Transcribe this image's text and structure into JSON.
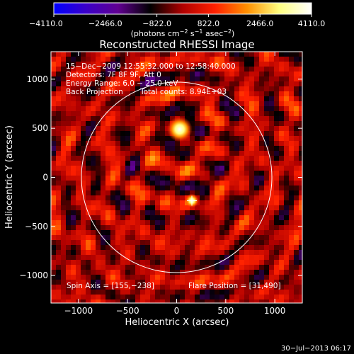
{
  "colorbar": {
    "ticks": [
      "−4110.0",
      "−2466.0",
      "−822.0",
      "822.0",
      "2466.0",
      "4110.0"
    ],
    "unit_prefix": "(photons cm",
    "unit_exp1": "−2",
    "unit_mid": " s",
    "unit_exp2": "−1",
    "unit_mid2": " asec",
    "unit_exp3": "−2",
    "unit_suffix": ")"
  },
  "annotations": {
    "time_range": "15−Dec−2009 12:55:32.000 to 12:58:40.000",
    "detectors": "Detectors: 7F 8F 9F, Att 0",
    "energy": "Energy Range: 6.0 − 25.0 keV",
    "method": "Back Projection",
    "total_counts": "Total counts: 8.94E+03",
    "spin_axis": "Spin Axis = [155,−238]",
    "flare_position": "Flare Position = [31,490]"
  },
  "footer_date": "30−Jul−2013 06:17",
  "chart_data": {
    "type": "heatmap",
    "title": "Reconstructed RHESSI Image",
    "xlabel": "Heliocentric X (arcsec)",
    "ylabel": "Heliocentric Y (arcsec)",
    "xlim": [
      -1280,
      1280
    ],
    "ylim": [
      -1280,
      1280
    ],
    "x_ticks": [
      {
        "value": -1000,
        "label": "−1000"
      },
      {
        "value": -500,
        "label": "−500"
      },
      {
        "value": 0,
        "label": "0"
      },
      {
        "value": 500,
        "label": "500"
      },
      {
        "value": 1000,
        "label": "1000"
      }
    ],
    "y_ticks": [
      {
        "value": -1000,
        "label": "−1000"
      },
      {
        "value": -500,
        "label": "−500"
      },
      {
        "value": 0,
        "label": "0"
      },
      {
        "value": 500,
        "label": "500"
      },
      {
        "value": 1000,
        "label": "1000"
      }
    ],
    "colorbar_range": [
      -4110.0,
      4110.0
    ],
    "colormap": [
      "#0000ff",
      "#3a00c8",
      "#600090",
      "#000000",
      "#b00000",
      "#ff2000",
      "#ff9000",
      "#ffff80",
      "#ffffff"
    ],
    "solar_limb_radius": 970,
    "sources": [
      {
        "x": 31,
        "y": 490,
        "peak": 4110
      },
      {
        "x": 155,
        "y": -238,
        "peak": 2600
      }
    ],
    "markers": [
      {
        "x": 155,
        "y": -238,
        "symbol": "+"
      }
    ]
  }
}
